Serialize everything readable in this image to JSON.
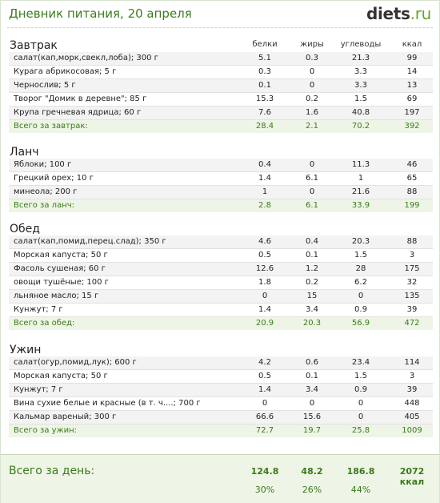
{
  "header": {
    "title": "Дневник питания, 20 апреля",
    "logo_main": "diets",
    "logo_tld": ".ru"
  },
  "columns": {
    "protein": "белки",
    "fat": "жиры",
    "carbs": "углеводы",
    "kcal": "ккал"
  },
  "sections": [
    {
      "name": "Завтрак",
      "items": [
        {
          "name": "салат(кап,морк,свекл,лоба); 300 г",
          "protein": "5.1",
          "fat": "0.3",
          "carbs": "21.3",
          "kcal": "99"
        },
        {
          "name": "Курага абрикосовая; 5 г",
          "protein": "0.3",
          "fat": "0",
          "carbs": "3.3",
          "kcal": "14"
        },
        {
          "name": "Чернослив; 5 г",
          "protein": "0.1",
          "fat": "0",
          "carbs": "3.3",
          "kcal": "13"
        },
        {
          "name": "Творог \"Домик в деревне\"; 85 г",
          "protein": "15.3",
          "fat": "0.2",
          "carbs": "1.5",
          "kcal": "69"
        },
        {
          "name": "Крупа гречневая ядрица; 60 г",
          "protein": "7.6",
          "fat": "1.6",
          "carbs": "40.8",
          "kcal": "197"
        }
      ],
      "total": {
        "label": "Всего за завтрак:",
        "protein": "28.4",
        "fat": "2.1",
        "carbs": "70.2",
        "kcal": "392"
      }
    },
    {
      "name": "Ланч",
      "items": [
        {
          "name": "Яблоки; 100 г",
          "protein": "0.4",
          "fat": "0",
          "carbs": "11.3",
          "kcal": "46"
        },
        {
          "name": "Грецкий орех; 10 г",
          "protein": "1.4",
          "fat": "6.1",
          "carbs": "1",
          "kcal": "65"
        },
        {
          "name": "минеола; 200 г",
          "protein": "1",
          "fat": "0",
          "carbs": "21.6",
          "kcal": "88"
        }
      ],
      "total": {
        "label": "Всего за ланч:",
        "protein": "2.8",
        "fat": "6.1",
        "carbs": "33.9",
        "kcal": "199"
      }
    },
    {
      "name": "Обед",
      "items": [
        {
          "name": "салат(кап,помид,перец.слад); 350 г",
          "protein": "4.6",
          "fat": "0.4",
          "carbs": "20.3",
          "kcal": "88"
        },
        {
          "name": "Морская капуста; 50 г",
          "protein": "0.5",
          "fat": "0.1",
          "carbs": "1.5",
          "kcal": "3"
        },
        {
          "name": "Фасоль сушеная; 60 г",
          "protein": "12.6",
          "fat": "1.2",
          "carbs": "28",
          "kcal": "175"
        },
        {
          "name": "овощи тушёные; 100 г",
          "protein": "1.8",
          "fat": "0.2",
          "carbs": "6.2",
          "kcal": "32"
        },
        {
          "name": "льняное масло; 15 г",
          "protein": "0",
          "fat": "15",
          "carbs": "0",
          "kcal": "135"
        },
        {
          "name": "Кунжут; 7 г",
          "protein": "1.4",
          "fat": "3.4",
          "carbs": "0.9",
          "kcal": "39"
        }
      ],
      "total": {
        "label": "Всего за обед:",
        "protein": "20.9",
        "fat": "20.3",
        "carbs": "56.9",
        "kcal": "472"
      }
    },
    {
      "name": "Ужин",
      "items": [
        {
          "name": "салат(огур,помид,лук); 600 г",
          "protein": "4.2",
          "fat": "0.6",
          "carbs": "23.4",
          "kcal": "114"
        },
        {
          "name": "Морская капуста; 50 г",
          "protein": "0.5",
          "fat": "0.1",
          "carbs": "1.5",
          "kcal": "3"
        },
        {
          "name": "Кунжут; 7 г",
          "protein": "1.4",
          "fat": "3.4",
          "carbs": "0.9",
          "kcal": "39"
        },
        {
          "name": "Вина сухие белые и красные (в т. ч....; 700 г",
          "protein": "0",
          "fat": "0",
          "carbs": "0",
          "kcal": "448"
        },
        {
          "name": "Кальмар вареный; 300 г",
          "protein": "66.6",
          "fat": "15.6",
          "carbs": "0",
          "kcal": "405"
        }
      ],
      "total": {
        "label": "Всего за ужин:",
        "protein": "72.7",
        "fat": "19.7",
        "carbs": "25.8",
        "kcal": "1009"
      }
    }
  ],
  "day_total": {
    "label": "Всего за день:",
    "protein": "124.8",
    "fat": "48.2",
    "carbs": "186.8",
    "kcal": "2072 ккал",
    "protein_pct": "30%",
    "fat_pct": "26%",
    "carbs_pct": "44%"
  }
}
